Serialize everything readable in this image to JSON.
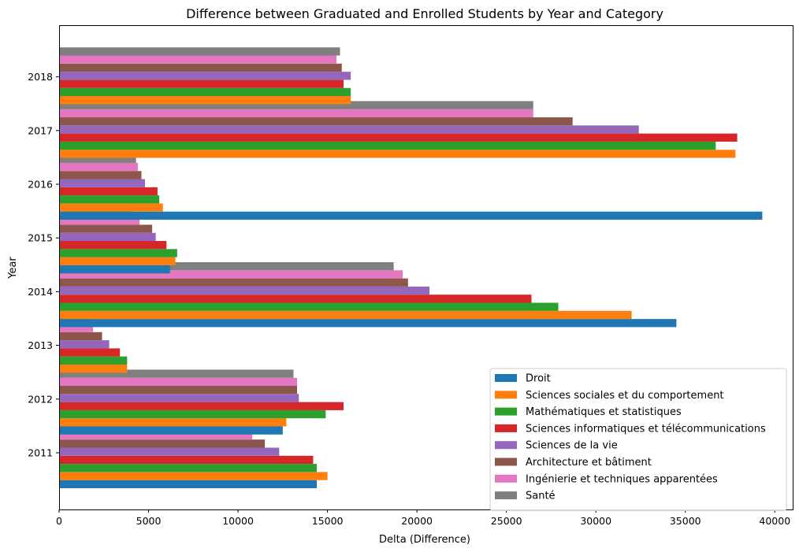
{
  "chart_data": {
    "type": "bar",
    "orientation": "horizontal",
    "title": "Difference between Graduated and Enrolled Students by Year and Category",
    "xlabel": "Delta (Difference)",
    "ylabel": "Year",
    "categories": [
      "2011",
      "2012",
      "2013",
      "2014",
      "2015",
      "2016",
      "2017",
      "2018"
    ],
    "xlim": [
      0,
      41000
    ],
    "xticks": [
      0,
      5000,
      10000,
      15000,
      20000,
      25000,
      30000,
      35000,
      40000
    ],
    "grid": false,
    "legend_position": "lower-right",
    "series": [
      {
        "name": "Droit",
        "color": "#1f77b4",
        "values": [
          14400,
          12500,
          0,
          34500,
          6200,
          39300,
          0,
          0
        ]
      },
      {
        "name": "Sciences sociales et du comportement",
        "color": "#ff7f0e",
        "values": [
          15000,
          12700,
          3800,
          32000,
          6500,
          5800,
          37800,
          16300
        ]
      },
      {
        "name": "Mathématiques et statistiques",
        "color": "#2ca02c",
        "values": [
          14400,
          14900,
          3800,
          27900,
          6600,
          5600,
          36700,
          16300
        ]
      },
      {
        "name": "Sciences informatiques et télécommunications",
        "color": "#d62728",
        "values": [
          14200,
          15900,
          3400,
          26400,
          6000,
          5500,
          37900,
          15900
        ]
      },
      {
        "name": "Sciences de la vie",
        "color": "#9467bd",
        "values": [
          12300,
          13400,
          2800,
          20700,
          5400,
          4800,
          32400,
          16300
        ]
      },
      {
        "name": "Architecture et bâtiment",
        "color": "#8c564b",
        "values": [
          11500,
          13300,
          2400,
          19500,
          5200,
          4600,
          28700,
          15800
        ]
      },
      {
        "name": "Ingénierie et techniques apparentées",
        "color": "#e377c2",
        "values": [
          10800,
          13300,
          1900,
          19200,
          4500,
          4400,
          26500,
          15500
        ]
      },
      {
        "name": "Santé",
        "color": "#7f7f7f",
        "values": [
          11900,
          13100,
          1900,
          18700,
          4100,
          4300,
          26500,
          15700
        ]
      }
    ]
  }
}
